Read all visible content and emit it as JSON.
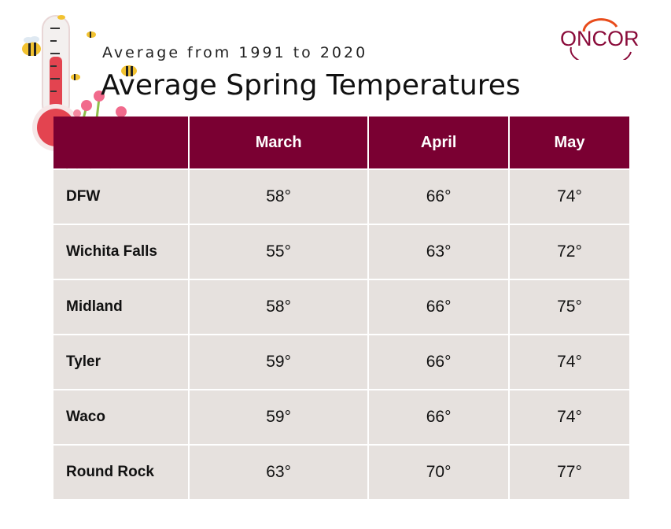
{
  "subtitle": "Average from 1991 to 2020",
  "title": "Average Spring Temperatures",
  "logo_text": "ONCOR",
  "icons": [
    "thermometer-icon",
    "bee-icon",
    "flower-icon"
  ],
  "colors": {
    "header": "#7a0032",
    "cell": "#e6e1de",
    "brand": "#8a0b3a"
  },
  "chart_data": {
    "type": "table",
    "title": "Average Spring Temperatures",
    "subtitle": "Average from 1991 to 2020",
    "columns": [
      "",
      "March",
      "April",
      "May"
    ],
    "rows": [
      {
        "city": "DFW",
        "values": [
          "58°",
          "66°",
          "74°"
        ]
      },
      {
        "city": "Wichita Falls",
        "values": [
          "55°",
          "63°",
          "72°"
        ]
      },
      {
        "city": "Midland",
        "values": [
          "58°",
          "66°",
          "75°"
        ]
      },
      {
        "city": "Tyler",
        "values": [
          "59°",
          "66°",
          "74°"
        ]
      },
      {
        "city": "Waco",
        "values": [
          "59°",
          "66°",
          "74°"
        ]
      },
      {
        "city": "Round Rock",
        "values": [
          "63°",
          "70°",
          "77°"
        ]
      }
    ]
  }
}
